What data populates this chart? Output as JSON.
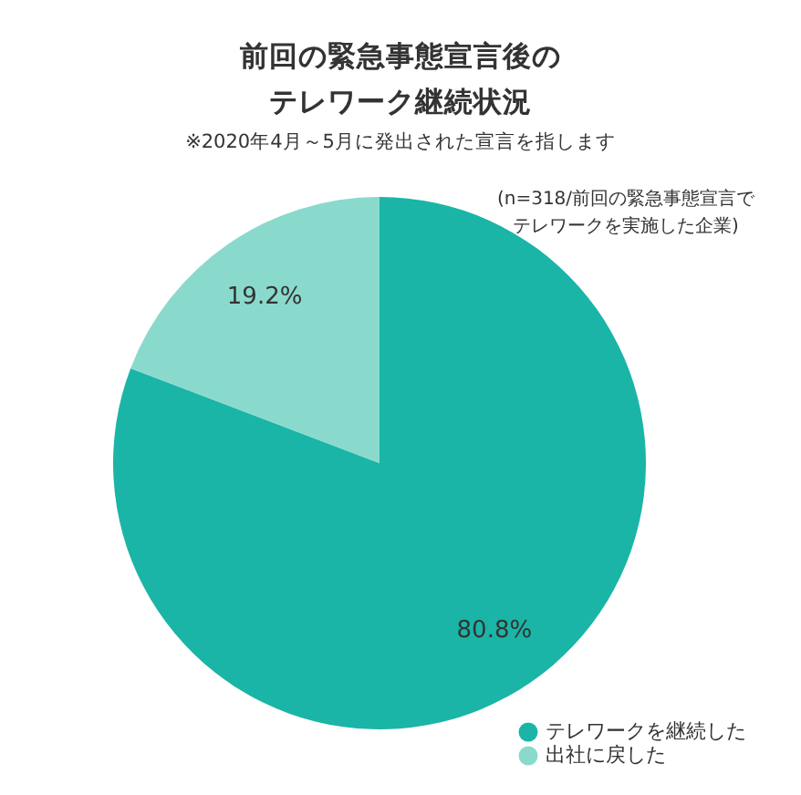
{
  "chart_data": {
    "type": "pie",
    "title": "前回の緊急事態宣言後のテレワーク継続状況",
    "subtitle": "※2020年4月～5月に発出された宣言を指します",
    "annotations": [
      "(n=318/前回の緊急事態宣言でテレワークを実施した企業)"
    ],
    "categories": [
      "テレワークを継続した",
      "出社に戻した"
    ],
    "values": [
      80.8,
      19.2
    ],
    "value_labels": [
      "80.8%",
      "19.2%"
    ],
    "colors": [
      "#1ab5a6",
      "#8ad9cd"
    ],
    "legend": "bottom right"
  }
}
